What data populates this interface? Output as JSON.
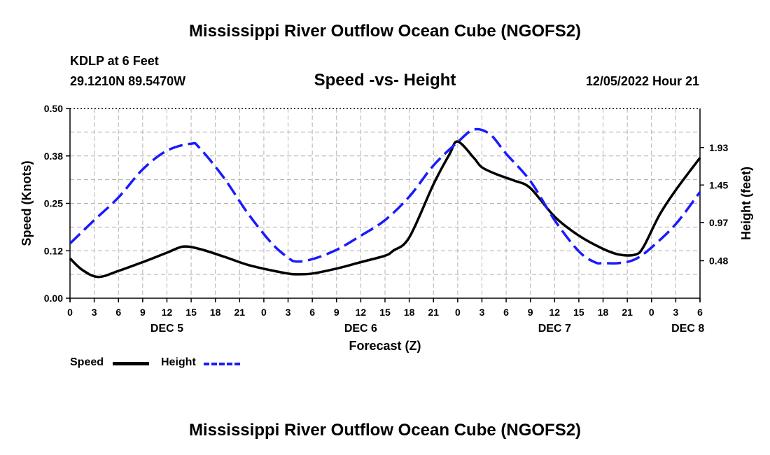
{
  "header": {
    "title": "Mississippi River Outflow Ocean Cube (NGOFS2)",
    "station": "KDLP at 6 Feet",
    "coords": "29.1210N  89.5470W",
    "datetime": "12/05/2022 Hour 21"
  },
  "footer": {
    "title": "Mississippi River Outflow Ocean Cube (NGOFS2)"
  },
  "legend": {
    "speed_label": "Speed",
    "height_label": "Height"
  },
  "chart_data": {
    "type": "line",
    "title": "Speed -vs- Height",
    "xlabel": "Forecast (Z)",
    "ylabel_left": "Speed (Knots)",
    "ylabel_right": "Height (feet)",
    "x_hours_range": [
      0,
      78
    ],
    "ylim_left": [
      0.0,
      0.5
    ],
    "ylim_right": [
      0.0,
      2.43
    ],
    "left_ticks": [
      "0.00",
      "0.12",
      "0.25",
      "0.38",
      "0.50"
    ],
    "left_tick_values": [
      0.0,
      0.125,
      0.25,
      0.375,
      0.5
    ],
    "right_ticks": [
      "0.48",
      "0.97",
      "1.45",
      "1.93"
    ],
    "right_tick_values": [
      0.48,
      0.97,
      1.45,
      1.93
    ],
    "x_tick_labels": [
      "0",
      "3",
      "6",
      "9",
      "12",
      "15",
      "18",
      "21",
      "0",
      "3",
      "6",
      "9",
      "12",
      "15",
      "18",
      "21",
      "0",
      "3",
      "6",
      "9",
      "12",
      "15",
      "18",
      "21",
      "0",
      "3",
      "6"
    ],
    "day_labels": [
      {
        "label": "DEC 5",
        "hour": 12
      },
      {
        "label": "DEC 6",
        "hour": 36
      },
      {
        "label": "DEC 7",
        "hour": 60
      },
      {
        "label": "DEC 8",
        "hour": 76.5
      }
    ],
    "grid": true,
    "series": [
      {
        "name": "Speed",
        "axis": "left",
        "color": "#000000",
        "dash": "solid",
        "x": [
          0,
          1.5,
          3.5,
          6,
          9,
          12,
          14,
          16,
          19,
          22,
          25,
          27,
          28,
          30,
          33,
          36,
          39,
          40,
          42,
          45,
          47,
          48,
          50,
          51,
          53,
          55,
          57,
          60,
          63,
          66,
          68,
          70,
          71,
          73,
          75,
          78
        ],
        "y": [
          0.105,
          0.075,
          0.056,
          0.072,
          0.095,
          0.12,
          0.136,
          0.13,
          0.11,
          0.088,
          0.073,
          0.065,
          0.063,
          0.065,
          0.078,
          0.095,
          0.112,
          0.125,
          0.16,
          0.3,
          0.38,
          0.413,
          0.37,
          0.345,
          0.325,
          0.31,
          0.29,
          0.215,
          0.165,
          0.13,
          0.115,
          0.115,
          0.135,
          0.22,
          0.285,
          0.37
        ]
      },
      {
        "name": "Height",
        "axis": "right",
        "color": "#1a1aff",
        "dash": "dashed",
        "x": [
          0,
          3,
          6,
          9,
          12,
          15,
          16,
          19,
          22,
          25,
          27,
          28,
          30,
          33,
          36,
          39,
          42,
          45,
          48,
          50,
          52,
          54,
          57,
          60,
          63,
          65,
          66,
          68,
          70,
          72,
          75,
          78
        ],
        "y": [
          0.7,
          1.0,
          1.29,
          1.65,
          1.89,
          1.98,
          1.93,
          1.55,
          1.09,
          0.7,
          0.52,
          0.47,
          0.5,
          0.62,
          0.8,
          1.0,
          1.3,
          1.7,
          2.0,
          2.16,
          2.1,
          1.85,
          1.5,
          1.0,
          0.6,
          0.46,
          0.45,
          0.45,
          0.5,
          0.65,
          0.95,
          1.36
        ]
      }
    ]
  }
}
